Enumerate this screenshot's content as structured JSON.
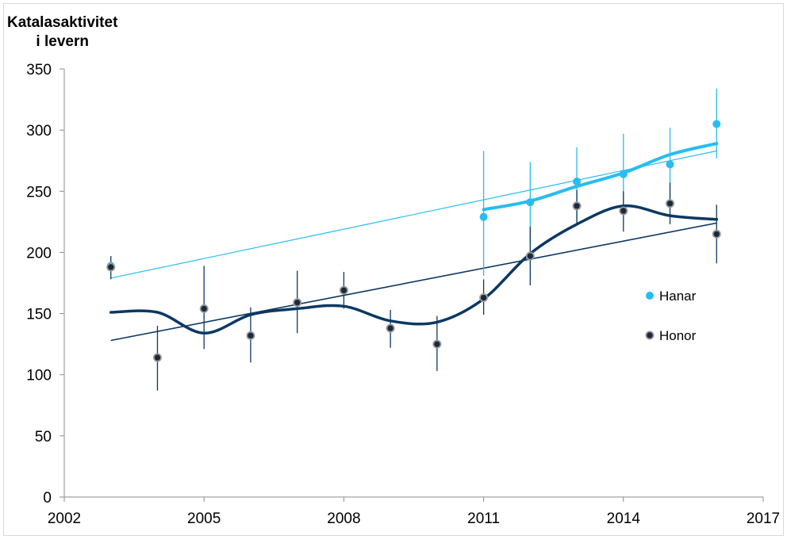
{
  "chart_data": {
    "type": "line",
    "ylabel_lines": [
      "Katalasaktivitet",
      "i levern"
    ],
    "xlim": [
      2002,
      2017
    ],
    "ylim": [
      0,
      350
    ],
    "x_ticks": [
      2002,
      2005,
      2008,
      2011,
      2014,
      2017
    ],
    "y_ticks": [
      0,
      50,
      100,
      150,
      200,
      250,
      300,
      350
    ],
    "grid": false,
    "legend_position": "right",
    "series": [
      {
        "name": "Hanar",
        "color": "#27bdf0",
        "points": [
          {
            "x": 2003,
            "y": 189,
            "err": [
              189,
              189
            ]
          },
          {
            "x": 2011,
            "y": 229,
            "err": [
              181,
              283
            ]
          },
          {
            "x": 2012,
            "y": 241,
            "err": [
              207,
              274
            ]
          },
          {
            "x": 2013,
            "y": 258,
            "err": [
              226,
              286
            ]
          },
          {
            "x": 2014,
            "y": 264,
            "err": [
              232,
              297
            ]
          },
          {
            "x": 2015,
            "y": 272,
            "err": [
              240,
              302
            ]
          },
          {
            "x": 2016,
            "y": 305,
            "err": [
              277,
              334
            ]
          }
        ],
        "smooth": [
          [
            2011,
            235
          ],
          [
            2012,
            242
          ],
          [
            2013,
            254
          ],
          [
            2014,
            265
          ],
          [
            2015,
            280
          ],
          [
            2016,
            289
          ]
        ],
        "trend": [
          [
            2003,
            179
          ],
          [
            2016,
            283
          ]
        ]
      },
      {
        "name": "Honor",
        "color": "#0b3863",
        "points": [
          {
            "x": 2003,
            "y": 188,
            "err": [
              178,
              197
            ]
          },
          {
            "x": 2004,
            "y": 114,
            "err": [
              87,
              140
            ]
          },
          {
            "x": 2005,
            "y": 154,
            "err": [
              121,
              189
            ]
          },
          {
            "x": 2006,
            "y": 132,
            "err": [
              110,
              155
            ]
          },
          {
            "x": 2007,
            "y": 159,
            "err": [
              134,
              185
            ]
          },
          {
            "x": 2008,
            "y": 169,
            "err": [
              154,
              184
            ]
          },
          {
            "x": 2009,
            "y": 138,
            "err": [
              122,
              153
            ]
          },
          {
            "x": 2010,
            "y": 125,
            "err": [
              103,
              148
            ]
          },
          {
            "x": 2011,
            "y": 163,
            "err": [
              149,
              178
            ]
          },
          {
            "x": 2012,
            "y": 197,
            "err": [
              173,
              221
            ]
          },
          {
            "x": 2013,
            "y": 238,
            "err": [
              222,
              251
            ]
          },
          {
            "x": 2014,
            "y": 234,
            "err": [
              217,
              250
            ]
          },
          {
            "x": 2015,
            "y": 240,
            "err": [
              223,
              257
            ]
          },
          {
            "x": 2016,
            "y": 215,
            "err": [
              191,
              239
            ]
          }
        ],
        "smooth": [
          [
            2003,
            151
          ],
          [
            2004,
            151
          ],
          [
            2005,
            134
          ],
          [
            2006,
            149
          ],
          [
            2007,
            154
          ],
          [
            2008,
            156
          ],
          [
            2009,
            144
          ],
          [
            2010,
            143
          ],
          [
            2011,
            162
          ],
          [
            2012,
            199
          ],
          [
            2013,
            223
          ],
          [
            2014,
            238
          ],
          [
            2015,
            230
          ],
          [
            2016,
            227
          ]
        ],
        "trend": [
          [
            2003,
            128
          ],
          [
            2016,
            224
          ]
        ]
      }
    ]
  }
}
